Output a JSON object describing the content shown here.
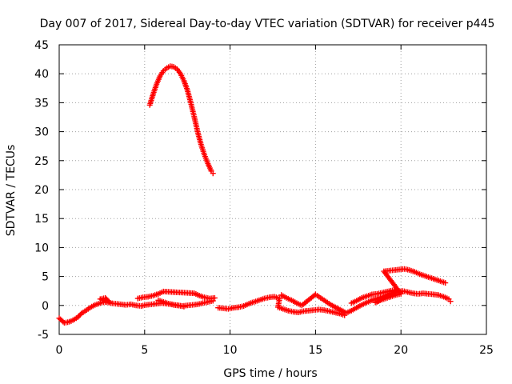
{
  "chart_data": {
    "type": "scatter",
    "title": "Day 007 of 2017, Sidereal Day-to-day VTEC variation (SDTVAR) for receiver p445",
    "xlabel": "GPS time / hours",
    "ylabel": "SDTVAR / TECUs",
    "xlim": [
      0,
      25
    ],
    "ylim": [
      -5,
      45
    ],
    "xticks": [
      0,
      5,
      10,
      15,
      20,
      25
    ],
    "yticks": [
      -5,
      0,
      5,
      10,
      15,
      20,
      25,
      30,
      35,
      40,
      45
    ],
    "grid": true,
    "marker": "+",
    "series": [
      {
        "name": "p445",
        "color": "#ff0000",
        "points": [
          [
            0.0,
            -2.2
          ],
          [
            0.15,
            -2.6
          ],
          [
            0.3,
            -3.0
          ],
          [
            0.5,
            -2.9
          ],
          [
            0.7,
            -2.7
          ],
          [
            0.9,
            -2.4
          ],
          [
            1.1,
            -2.0
          ],
          [
            1.3,
            -1.4
          ],
          [
            1.5,
            -1.0
          ],
          [
            1.7,
            -0.6
          ],
          [
            1.9,
            -0.2
          ],
          [
            2.1,
            0.1
          ],
          [
            2.3,
            0.3
          ],
          [
            2.5,
            0.5
          ],
          [
            2.7,
            0.6
          ],
          [
            2.9,
            0.5
          ],
          [
            2.4,
            1.1
          ],
          [
            2.7,
            1.3
          ],
          [
            3.0,
            0.4
          ],
          [
            3.3,
            0.3
          ],
          [
            3.6,
            0.2
          ],
          [
            3.9,
            0.1
          ],
          [
            4.2,
            0.2
          ],
          [
            4.5,
            0.0
          ],
          [
            4.8,
            -0.1
          ],
          [
            5.1,
            0.1
          ],
          [
            5.4,
            0.2
          ],
          [
            5.7,
            0.3
          ],
          [
            6.0,
            0.4
          ],
          [
            6.3,
            0.3
          ],
          [
            6.6,
            0.2
          ],
          [
            6.9,
            0.0
          ],
          [
            7.2,
            -0.1
          ],
          [
            7.5,
            0.0
          ],
          [
            7.8,
            0.1
          ],
          [
            8.1,
            0.2
          ],
          [
            8.4,
            0.4
          ],
          [
            8.7,
            0.6
          ],
          [
            9.0,
            0.8
          ],
          [
            4.6,
            1.2
          ],
          [
            4.9,
            1.4
          ],
          [
            5.2,
            1.5
          ],
          [
            5.5,
            1.7
          ],
          [
            5.8,
            2.0
          ],
          [
            6.1,
            2.4
          ],
          [
            7.9,
            2.1
          ],
          [
            8.2,
            1.7
          ],
          [
            8.5,
            1.4
          ],
          [
            8.8,
            1.2
          ],
          [
            9.1,
            1.3
          ],
          [
            5.8,
            0.9
          ],
          [
            6.1,
            0.6
          ],
          [
            6.4,
            0.3
          ],
          [
            6.7,
            0.1
          ],
          [
            7.0,
            0.0
          ],
          [
            7.3,
            -0.2
          ],
          [
            5.3,
            34.6
          ],
          [
            5.5,
            36.5
          ],
          [
            5.7,
            38.2
          ],
          [
            5.9,
            39.6
          ],
          [
            6.1,
            40.5
          ],
          [
            6.3,
            41.0
          ],
          [
            6.5,
            41.3
          ],
          [
            6.7,
            41.2
          ],
          [
            6.9,
            40.8
          ],
          [
            7.1,
            40.0
          ],
          [
            7.3,
            38.8
          ],
          [
            7.5,
            37.2
          ],
          [
            7.7,
            35.0
          ],
          [
            7.9,
            32.6
          ],
          [
            8.1,
            30.0
          ],
          [
            8.3,
            27.8
          ],
          [
            8.5,
            26.0
          ],
          [
            8.7,
            24.5
          ],
          [
            8.9,
            23.2
          ],
          [
            9.0,
            22.8
          ],
          [
            9.3,
            -0.4
          ],
          [
            9.6,
            -0.5
          ],
          [
            9.9,
            -0.6
          ],
          [
            10.2,
            -0.4
          ],
          [
            10.5,
            -0.3
          ],
          [
            10.8,
            -0.1
          ],
          [
            11.1,
            0.3
          ],
          [
            11.4,
            0.6
          ],
          [
            11.7,
            0.9
          ],
          [
            12.0,
            1.2
          ],
          [
            12.3,
            1.4
          ],
          [
            12.6,
            1.5
          ],
          [
            12.9,
            1.2
          ],
          [
            12.8,
            -0.3
          ],
          [
            13.1,
            -0.6
          ],
          [
            13.4,
            -0.9
          ],
          [
            13.7,
            -1.1
          ],
          [
            14.0,
            -1.2
          ],
          [
            14.3,
            -1.0
          ],
          [
            14.6,
            -0.9
          ],
          [
            14.9,
            -0.8
          ],
          [
            15.2,
            -0.7
          ],
          [
            15.5,
            -0.8
          ],
          [
            15.8,
            -1.0
          ],
          [
            16.1,
            -1.2
          ],
          [
            16.4,
            -1.4
          ],
          [
            16.7,
            -1.7
          ],
          [
            13.0,
            1.8
          ],
          [
            13.3,
            1.3
          ],
          [
            13.6,
            0.9
          ],
          [
            13.9,
            0.4
          ],
          [
            14.2,
            0.0
          ],
          [
            15.0,
            1.9
          ],
          [
            15.3,
            1.3
          ],
          [
            15.6,
            0.7
          ],
          [
            15.9,
            0.1
          ],
          [
            16.8,
            -1.3
          ],
          [
            17.1,
            -0.9
          ],
          [
            17.4,
            -0.4
          ],
          [
            17.7,
            0.1
          ],
          [
            18.0,
            0.5
          ],
          [
            18.3,
            0.9
          ],
          [
            18.6,
            1.2
          ],
          [
            18.9,
            1.5
          ],
          [
            19.2,
            1.7
          ],
          [
            19.5,
            2.0
          ],
          [
            19.8,
            2.3
          ],
          [
            20.1,
            2.5
          ],
          [
            20.4,
            2.3
          ],
          [
            20.7,
            2.1
          ],
          [
            21.0,
            2.0
          ],
          [
            21.3,
            2.1
          ],
          [
            21.6,
            2.0
          ],
          [
            21.9,
            1.9
          ],
          [
            22.2,
            1.8
          ],
          [
            22.5,
            1.5
          ],
          [
            22.8,
            1.1
          ],
          [
            22.9,
            0.7
          ],
          [
            17.1,
            0.4
          ],
          [
            17.4,
            0.8
          ],
          [
            17.7,
            1.3
          ],
          [
            18.0,
            1.6
          ],
          [
            18.3,
            1.9
          ],
          [
            18.6,
            2.0
          ],
          [
            18.9,
            2.2
          ],
          [
            19.2,
            2.4
          ],
          [
            19.5,
            2.6
          ],
          [
            19.8,
            2.7
          ],
          [
            18.5,
            0.5
          ],
          [
            18.8,
            0.9
          ],
          [
            19.1,
            1.2
          ],
          [
            19.4,
            1.5
          ],
          [
            19.7,
            1.8
          ],
          [
            20.0,
            2.0
          ],
          [
            19.0,
            5.9
          ],
          [
            19.3,
            6.0
          ],
          [
            19.6,
            6.1
          ],
          [
            19.9,
            6.2
          ],
          [
            20.2,
            6.3
          ],
          [
            20.5,
            6.1
          ],
          [
            20.8,
            5.8
          ],
          [
            21.1,
            5.4
          ],
          [
            21.4,
            5.1
          ],
          [
            21.7,
            4.8
          ],
          [
            22.0,
            4.5
          ],
          [
            22.3,
            4.2
          ],
          [
            22.6,
            3.9
          ]
        ]
      }
    ]
  }
}
